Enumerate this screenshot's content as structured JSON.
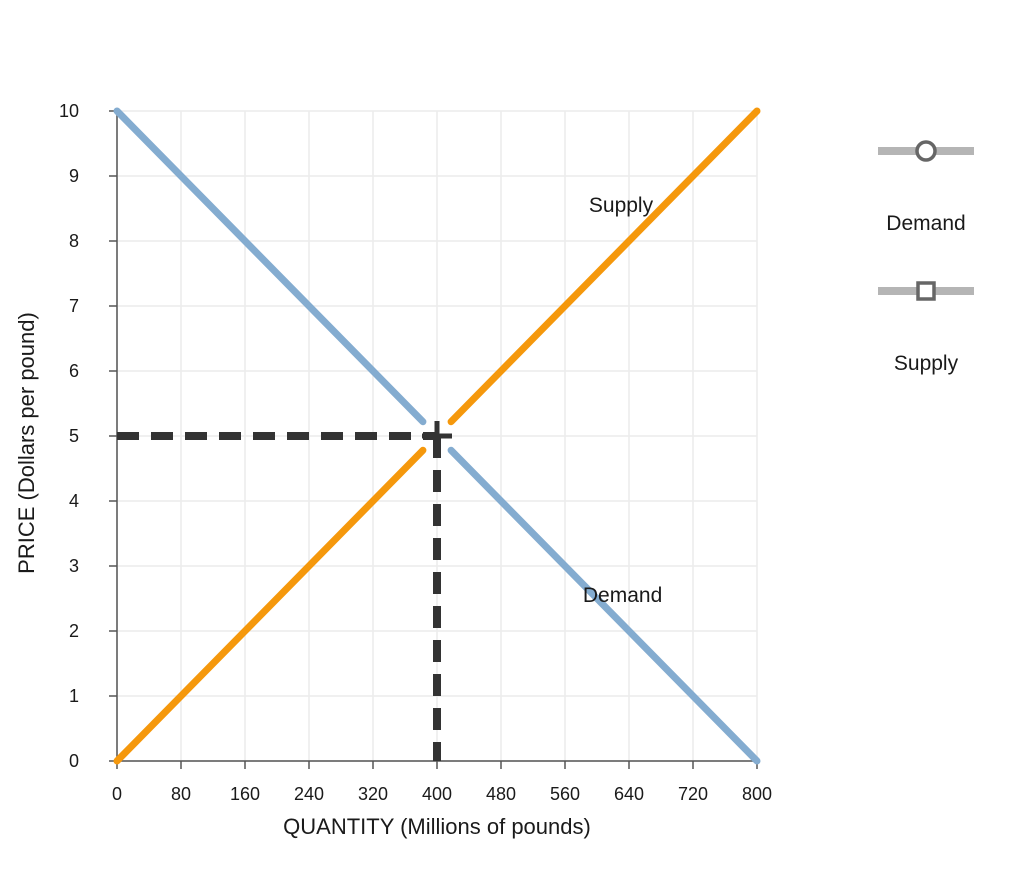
{
  "chart_data": {
    "type": "line",
    "xlabel": "QUANTITY (Millions of pounds)",
    "ylabel": "PRICE (Dollars per pound)",
    "xlim": [
      0,
      800
    ],
    "ylim": [
      0,
      10
    ],
    "x_ticks": [
      0,
      80,
      160,
      240,
      320,
      400,
      480,
      560,
      640,
      720,
      800
    ],
    "y_ticks": [
      0,
      1,
      2,
      3,
      4,
      5,
      6,
      7,
      8,
      9,
      10
    ],
    "grid": true,
    "legend_position": "right",
    "series": [
      {
        "name": "Demand",
        "color": "#84acd0",
        "legend_marker": "circle",
        "points": [
          [
            0,
            10
          ],
          [
            800,
            0
          ]
        ]
      },
      {
        "name": "Supply",
        "color": "#f5980c",
        "legend_marker": "square",
        "points": [
          [
            0,
            0
          ],
          [
            800,
            10
          ]
        ]
      }
    ],
    "annotations": [
      {
        "text": "Supply",
        "x": 630,
        "y": 8.45,
        "series": "Supply"
      },
      {
        "text": "Demand",
        "x": 632,
        "y": 2.45,
        "series": "Demand"
      }
    ],
    "equilibrium": {
      "x": 400,
      "y": 5
    }
  }
}
